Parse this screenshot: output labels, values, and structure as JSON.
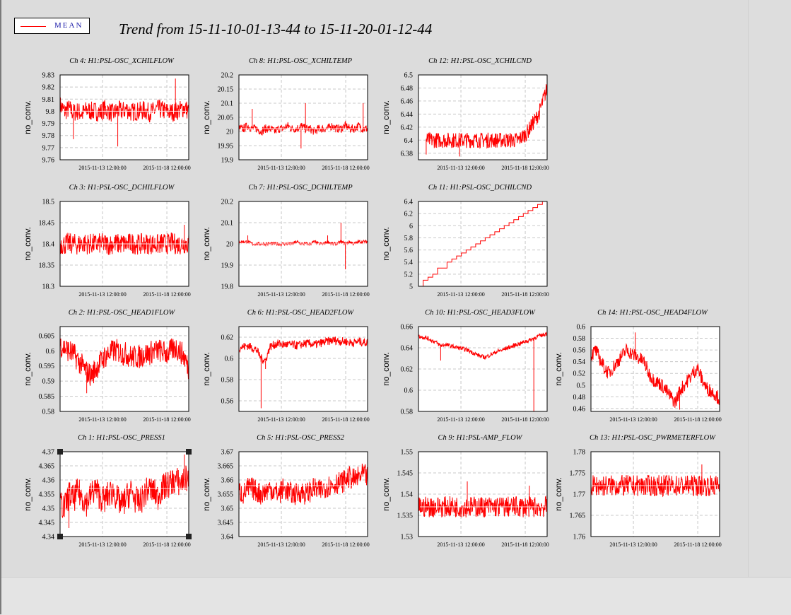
{
  "page": {
    "title": "Trend from 15-11-10-01-13-44 to 15-11-20-01-12-44",
    "legend_label": "MEAN",
    "series_color": "#ff0000",
    "background": "#dcdcdc"
  },
  "chart_data": [
    {
      "type": "line",
      "title": "Ch 4: H1:PSL-OSC_XCHILFLOW",
      "ylabel": "no_conv.",
      "ylim": [
        9.76,
        9.83
      ],
      "yticks": [
        "9.83",
        "9.82",
        "9.81",
        "9.8",
        "9.79",
        "9.78",
        "9.77",
        "9.76"
      ],
      "xticks": [
        "2015-11-13 12:00:00",
        "2015-11-18 12:00:00"
      ],
      "series": [
        {
          "values": [
            9.805,
            9.8,
            9.802,
            9.799,
            9.8,
            9.798,
            9.801,
            9.8,
            9.8,
            9.799,
            9.802,
            9.8,
            9.798,
            9.801,
            9.8,
            9.802,
            9.799,
            9.8,
            9.8,
            9.801,
            9.799,
            9.8,
            9.802,
            9.801,
            9.8,
            9.799,
            9.8,
            9.801,
            9.803,
            9.8
          ],
          "spread": 0.008,
          "spikes": [
            [
              3,
              9.777
            ],
            [
              13,
              9.771
            ],
            [
              26,
              9.827
            ]
          ],
          "mean": 9.8
        }
      ]
    },
    {
      "type": "line",
      "title": "Ch 8: H1:PSL-OSC_XCHILTEMP",
      "ylabel": "no_conv.",
      "ylim": [
        19.9,
        20.2
      ],
      "yticks": [
        "20.2",
        "20.15",
        "20.1",
        "20.05",
        "20",
        "19.95",
        "19.9"
      ],
      "xticks": [
        "2015-11-13 12:00:00",
        "2015-11-18 12:00:00"
      ],
      "series": [
        {
          "values": [
            20.01,
            20.01,
            20.02,
            20.01,
            20.01,
            20.0,
            20.01,
            20.01,
            20.0,
            20.01,
            20.01,
            20.02,
            20.01,
            20.01,
            20.02,
            20.01,
            20.01,
            20.0,
            20.01,
            20.01,
            20.01,
            20.02,
            20.01,
            20.01,
            20.02,
            20.01,
            20.01,
            20.02,
            20.01,
            20.01
          ],
          "spread": 0.015,
          "spikes": [
            [
              3,
              20.08
            ],
            [
              14,
              19.94
            ],
            [
              15,
              20.1
            ],
            [
              28,
              20.1
            ],
            [
              29,
              19.96
            ]
          ],
          "mean": 20.01
        }
      ]
    },
    {
      "type": "line",
      "title": "Ch 12: H1:PSL-OSC_XCHILCND",
      "ylabel": "no_conv.",
      "ylim": [
        6.37,
        6.5
      ],
      "yticks": [
        "6.5",
        "6.48",
        "6.46",
        "6.44",
        "6.42",
        "6.4",
        "6.38"
      ],
      "xticks": [
        "2015-11-13 12:00:00",
        "2015-11-18 12:00:00"
      ],
      "series": [
        {
          "values": [
            6.4,
            6.4,
            6.4,
            6.4,
            6.4,
            6.4,
            6.4,
            6.4,
            6.4,
            6.4,
            6.4,
            6.4,
            6.4,
            6.4,
            6.4,
            6.4,
            6.4,
            6.4,
            6.4,
            6.4,
            6.4,
            6.4,
            6.4,
            6.405,
            6.41,
            6.42,
            6.43,
            6.44,
            6.46,
            6.48
          ],
          "spread": 0.012,
          "spikes": [
            [
              0,
              6.378
            ],
            [
              8,
              6.375
            ]
          ],
          "mean": null,
          "start_frac": 0.06
        }
      ]
    },
    {
      "type": "line",
      "title": "Ch 3: H1:PSL-OSC_DCHILFLOW",
      "ylabel": "no_conv.",
      "ylim": [
        18.3,
        18.5
      ],
      "yticks": [
        "18.5",
        "18.45",
        "18.4",
        "18.35",
        "18.3"
      ],
      "xticks": [
        "2015-11-13 12:00:00",
        "2015-11-18 12:00:00"
      ],
      "series": [
        {
          "values": [
            18.4,
            18.399,
            18.401,
            18.4,
            18.398,
            18.402,
            18.4,
            18.4,
            18.399,
            18.401,
            18.4,
            18.398,
            18.401,
            18.4,
            18.4,
            18.399,
            18.402,
            18.4,
            18.399,
            18.401,
            18.4,
            18.4,
            18.398,
            18.401,
            18.4,
            18.402,
            18.4,
            18.399,
            18.401,
            18.4
          ],
          "spread": 0.025,
          "spikes": [
            [
              28,
              18.445
            ]
          ],
          "mean": 18.4
        }
      ]
    },
    {
      "type": "line",
      "title": "Ch 7: H1:PSL-OSC_DCHILTEMP",
      "ylabel": "no_conv.",
      "ylim": [
        19.8,
        20.2
      ],
      "yticks": [
        "20.2",
        "20.1",
        "20",
        "19.9",
        "19.8"
      ],
      "xticks": [
        "2015-11-13 12:00:00",
        "2015-11-18 12:00:00"
      ],
      "series": [
        {
          "values": [
            20.01,
            20.01,
            20.01,
            20.0,
            20.0,
            20.0,
            20.0,
            20.0,
            20.0,
            20.0,
            20.0,
            20.0,
            20.0,
            20.01,
            20.0,
            20.0,
            20.0,
            20.01,
            20.0,
            20.0,
            20.01,
            20.0,
            20.0,
            20.01,
            20.0,
            20.01,
            20.0,
            20.01,
            20.01,
            20.01
          ],
          "spread": 0.008,
          "spikes": [
            [
              2,
              20.04
            ],
            [
              20,
              20.04
            ],
            [
              23,
              20.1
            ],
            [
              24,
              19.88
            ]
          ],
          "mean": 20.0
        }
      ]
    },
    {
      "type": "line",
      "title": "Ch 11: H1:PSL-OSC_DCHILCND",
      "ylabel": "no_conv.",
      "ylim": [
        5,
        6.4
      ],
      "yticks": [
        "6.4",
        "6.2",
        "6",
        "5.8",
        "5.6",
        "5.4",
        "5.2",
        "5"
      ],
      "xticks": [
        "2015-11-13 12:00:00",
        "2015-11-18 12:00:00"
      ],
      "series": [
        {
          "values": [
            5.0,
            5.1,
            5.15,
            5.2,
            5.3,
            5.3,
            5.4,
            5.45,
            5.5,
            5.55,
            5.6,
            5.65,
            5.7,
            5.75,
            5.8,
            5.85,
            5.9,
            5.95,
            6.0,
            6.05,
            6.1,
            6.15,
            6.2,
            6.25,
            6.3,
            6.35,
            6.4
          ],
          "spread": 0.0,
          "spikes": [],
          "mean": null,
          "steps": true
        }
      ]
    },
    {
      "type": "line",
      "title": "Ch 2: H1:PSL-OSC_HEAD1FLOW",
      "ylabel": "no_conv.",
      "ylim": [
        0.58,
        0.608
      ],
      "yticks": [
        "0.605",
        "0.6",
        "0.595",
        "0.59",
        "0.585",
        "0.58"
      ],
      "xticks": [
        "2015-11-13 12:00:00",
        "2015-11-18 12:00:00"
      ],
      "series": [
        {
          "values": [
            0.602,
            0.601,
            0.6,
            0.599,
            0.597,
            0.595,
            0.593,
            0.592,
            0.594,
            0.596,
            0.598,
            0.599,
            0.6,
            0.6,
            0.599,
            0.599,
            0.598,
            0.598,
            0.598,
            0.599,
            0.599,
            0.6,
            0.6,
            0.6,
            0.599,
            0.6,
            0.601,
            0.6,
            0.598,
            0.594
          ],
          "spread": 0.004,
          "spikes": [
            [
              6,
              0.586
            ],
            [
              29,
              0.583
            ]
          ],
          "mean": null
        }
      ]
    },
    {
      "type": "line",
      "title": "Ch 6: H1:PSL-OSC_HEAD2FLOW",
      "ylabel": "no_conv.",
      "ylim": [
        0.55,
        0.63
      ],
      "yticks": [
        "0.62",
        "0.6",
        "0.58",
        "0.56"
      ],
      "xticks": [
        "2015-11-13 12:00:00",
        "2015-11-18 12:00:00"
      ],
      "series": [
        {
          "values": [
            0.61,
            0.611,
            0.612,
            0.61,
            0.608,
            0.6,
            0.598,
            0.611,
            0.613,
            0.614,
            0.613,
            0.613,
            0.613,
            0.612,
            0.613,
            0.614,
            0.614,
            0.613,
            0.614,
            0.615,
            0.616,
            0.617,
            0.617,
            0.616,
            0.616,
            0.615,
            0.615,
            0.616,
            0.615,
            0.615
          ],
          "spread": 0.004,
          "spikes": [
            [
              5,
              0.553
            ],
            [
              6,
              0.59
            ]
          ],
          "mean": null
        }
      ]
    },
    {
      "type": "line",
      "title": "Ch 10: H1:PSL-OSC_HEAD3FLOW",
      "ylabel": "no_conv.",
      "ylim": [
        0.58,
        0.66
      ],
      "yticks": [
        "0.66",
        "0.64",
        "0.62",
        "0.6",
        "0.58"
      ],
      "xticks": [
        "2015-11-13 12:00:00",
        "2015-11-18 12:00:00"
      ],
      "series": [
        {
          "values": [
            0.651,
            0.65,
            0.649,
            0.647,
            0.645,
            0.642,
            0.643,
            0.642,
            0.641,
            0.64,
            0.639,
            0.638,
            0.636,
            0.634,
            0.632,
            0.631,
            0.633,
            0.635,
            0.637,
            0.638,
            0.64,
            0.641,
            0.643,
            0.644,
            0.646,
            0.647,
            0.649,
            0.651,
            0.652,
            0.654
          ],
          "spread": 0.002,
          "spikes": [
            [
              5,
              0.628
            ],
            [
              26,
              0.58
            ]
          ],
          "mean": null
        }
      ]
    },
    {
      "type": "line",
      "title": "Ch 14: H1:PSL-OSC_HEAD4FLOW",
      "ylabel": "no_conv.",
      "ylim": [
        0.455,
        0.6
      ],
      "yticks": [
        "0.6",
        "0.58",
        "0.56",
        "0.54",
        "0.52",
        "0.5",
        "0.48",
        "0.46"
      ],
      "xticks": [
        "2015-11-13 12:00:00",
        "2015-11-18 12:00:00"
      ],
      "series": [
        {
          "values": [
            0.55,
            0.56,
            0.545,
            0.53,
            0.52,
            0.53,
            0.54,
            0.55,
            0.56,
            0.555,
            0.55,
            0.545,
            0.54,
            0.52,
            0.51,
            0.505,
            0.5,
            0.49,
            0.48,
            0.47,
            0.49,
            0.5,
            0.51,
            0.52,
            0.53,
            0.51,
            0.495,
            0.49,
            0.485,
            0.475
          ],
          "spread": 0.012,
          "spikes": [
            [
              10,
              0.59
            ],
            [
              20,
              0.458
            ]
          ],
          "mean": null
        }
      ]
    },
    {
      "type": "line",
      "title": "Ch 1: H1:PSL-OSC_PRESS1",
      "ylabel": "no_conv.",
      "ylim": [
        4.34,
        4.37
      ],
      "yticks": [
        "4.37",
        "4.365",
        "4.36",
        "4.355",
        "4.35",
        "4.345",
        "4.34"
      ],
      "xticks": [
        "2015-11-13 12:00:00",
        "2015-11-18 12:00:00"
      ],
      "series": [
        {
          "values": [
            4.352,
            4.35,
            4.355,
            4.353,
            4.356,
            4.354,
            4.352,
            4.355,
            4.357,
            4.354,
            4.353,
            4.355,
            4.356,
            4.353,
            4.351,
            4.354,
            4.356,
            4.353,
            4.352,
            4.355,
            4.357,
            4.356,
            4.354,
            4.357,
            4.358,
            4.359,
            4.36,
            4.359,
            4.36,
            4.361
          ],
          "spread": 0.005,
          "spikes": [
            [
              2,
              4.343
            ],
            [
              28,
              4.369
            ]
          ],
          "mean": 4.357
        }
      ]
    },
    {
      "type": "line",
      "title": "Ch 5: H1:PSL-OSC_PRESS2",
      "ylabel": "no_conv.",
      "ylim": [
        3.64,
        3.67
      ],
      "yticks": [
        "3.67",
        "3.665",
        "3.66",
        "3.655",
        "3.65",
        "3.645",
        "3.64"
      ],
      "xticks": [
        "2015-11-13 12:00:00",
        "2015-11-18 12:00:00"
      ],
      "series": [
        {
          "values": [
            3.656,
            3.655,
            3.657,
            3.657,
            3.656,
            3.655,
            3.656,
            3.657,
            3.656,
            3.655,
            3.657,
            3.656,
            3.655,
            3.655,
            3.656,
            3.655,
            3.656,
            3.657,
            3.656,
            3.657,
            3.658,
            3.658,
            3.659,
            3.659,
            3.66,
            3.661,
            3.66,
            3.661,
            3.662,
            3.661
          ],
          "spread": 0.004,
          "spikes": [
            [
              29,
              3.669
            ]
          ],
          "mean": 3.658
        }
      ]
    },
    {
      "type": "line",
      "title": "Ch 9: H1:PSL-AMP_FLOW",
      "ylabel": "no_conv.",
      "ylim": [
        1.53,
        1.55
      ],
      "yticks": [
        "1.55",
        "1.545",
        "1.54",
        "1.535",
        "1.53"
      ],
      "xticks": [
        "2015-11-13 12:00:00",
        "2015-11-18 12:00:00"
      ],
      "series": [
        {
          "values": [
            1.537,
            1.537,
            1.537,
            1.537,
            1.537,
            1.537,
            1.537,
            1.537,
            1.537,
            1.537,
            1.537,
            1.537,
            1.537,
            1.537,
            1.537,
            1.537,
            1.537,
            1.537,
            1.537,
            1.537,
            1.537,
            1.537,
            1.537,
            1.537,
            1.537,
            1.537,
            1.537,
            1.537,
            1.537,
            1.537
          ],
          "spread": 0.0025,
          "spikes": [
            [
              11,
              1.543
            ],
            [
              25,
              1.542
            ]
          ],
          "mean": 1.537
        }
      ]
    },
    {
      "type": "line",
      "title": "Ch 13: H1:PSL-OSC_PWRMETERFLOW",
      "ylabel": "no_conv.",
      "ylim": [
        1.76,
        1.78
      ],
      "yticks": [
        "1.78",
        "1.775",
        "1.77",
        "1.765",
        "1.76"
      ],
      "xticks": [
        "2015-11-13 12:00:00",
        "2015-11-18 12:00:00"
      ],
      "series": [
        {
          "values": [
            1.772,
            1.772,
            1.772,
            1.772,
            1.772,
            1.772,
            1.772,
            1.772,
            1.772,
            1.772,
            1.772,
            1.772,
            1.772,
            1.772,
            1.772,
            1.772,
            1.772,
            1.772,
            1.772,
            1.772,
            1.772,
            1.772,
            1.772,
            1.772,
            1.772,
            1.772,
            1.772,
            1.772,
            1.772,
            1.772
          ],
          "spread": 0.0025,
          "spikes": [
            [
              25,
              1.777
            ]
          ],
          "mean": 1.772
        }
      ]
    }
  ]
}
